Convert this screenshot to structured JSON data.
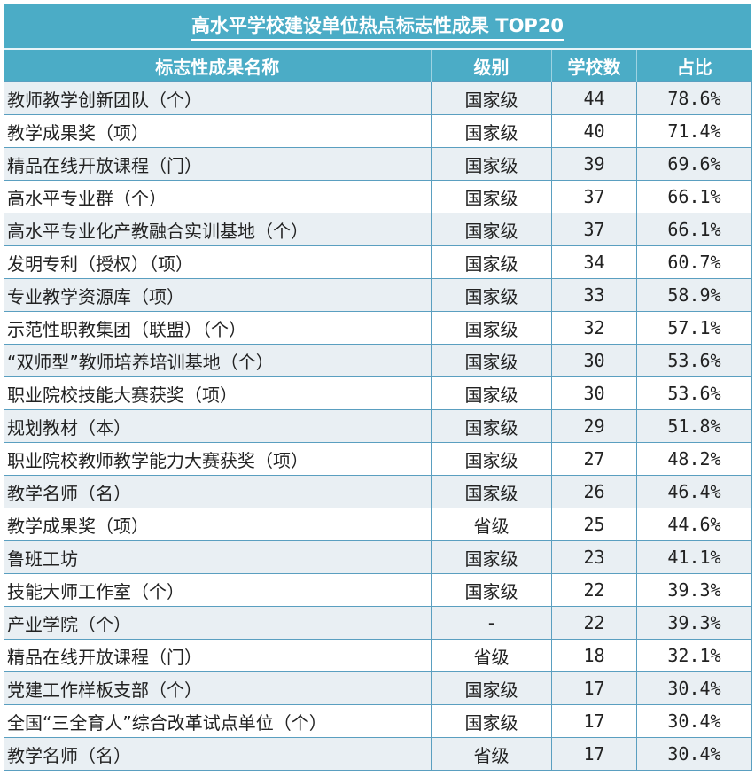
{
  "title": "高水平学校建设单位热点标志性成果 TOP20",
  "colors": {
    "header": "#4BACC6",
    "row_alt": "#E9EFF3",
    "border": "#5A9FC0"
  },
  "columns": [
    "标志性成果名称",
    "级别",
    "学校数",
    "占比"
  ],
  "rows": [
    [
      "教师教学创新团队（个）",
      "国家级",
      "44",
      "78.6%"
    ],
    [
      "教学成果奖（项）",
      "国家级",
      "40",
      "71.4%"
    ],
    [
      "精品在线开放课程（门）",
      "国家级",
      "39",
      "69.6%"
    ],
    [
      "高水平专业群（个）",
      "国家级",
      "37",
      "66.1%"
    ],
    [
      "高水平专业化产教融合实训基地（个）",
      "国家级",
      "37",
      "66.1%"
    ],
    [
      "发明专利（授权）（项）",
      "国家级",
      "34",
      "60.7%"
    ],
    [
      "专业教学资源库（项）",
      "国家级",
      "33",
      "58.9%"
    ],
    [
      "示范性职教集团（联盟）（个）",
      "国家级",
      "32",
      "57.1%"
    ],
    [
      "“双师型”教师培养培训基地（个）",
      "国家级",
      "30",
      "53.6%"
    ],
    [
      "职业院校技能大赛获奖（项）",
      "国家级",
      "30",
      "53.6%"
    ],
    [
      "规划教材（本）",
      "国家级",
      "29",
      "51.8%"
    ],
    [
      "职业院校教师教学能力大赛获奖（项）",
      "国家级",
      "27",
      "48.2%"
    ],
    [
      "教学名师（名）",
      "国家级",
      "26",
      "46.4%"
    ],
    [
      "教学成果奖（项）",
      "省级",
      "25",
      "44.6%"
    ],
    [
      "鲁班工坊",
      "国家级",
      "23",
      "41.1%"
    ],
    [
      "技能大师工作室（个）",
      "国家级",
      "22",
      "39.3%"
    ],
    [
      "产业学院（个）",
      "-",
      "22",
      "39.3%"
    ],
    [
      "精品在线开放课程（门）",
      "省级",
      "18",
      "32.1%"
    ],
    [
      "党建工作样板支部（个）",
      "国家级",
      "17",
      "30.4%"
    ],
    [
      "全国“三全育人”综合改革试点单位（个）",
      "国家级",
      "17",
      "30.4%"
    ],
    [
      "教学名师（名）",
      "省级",
      "17",
      "30.4%"
    ]
  ]
}
